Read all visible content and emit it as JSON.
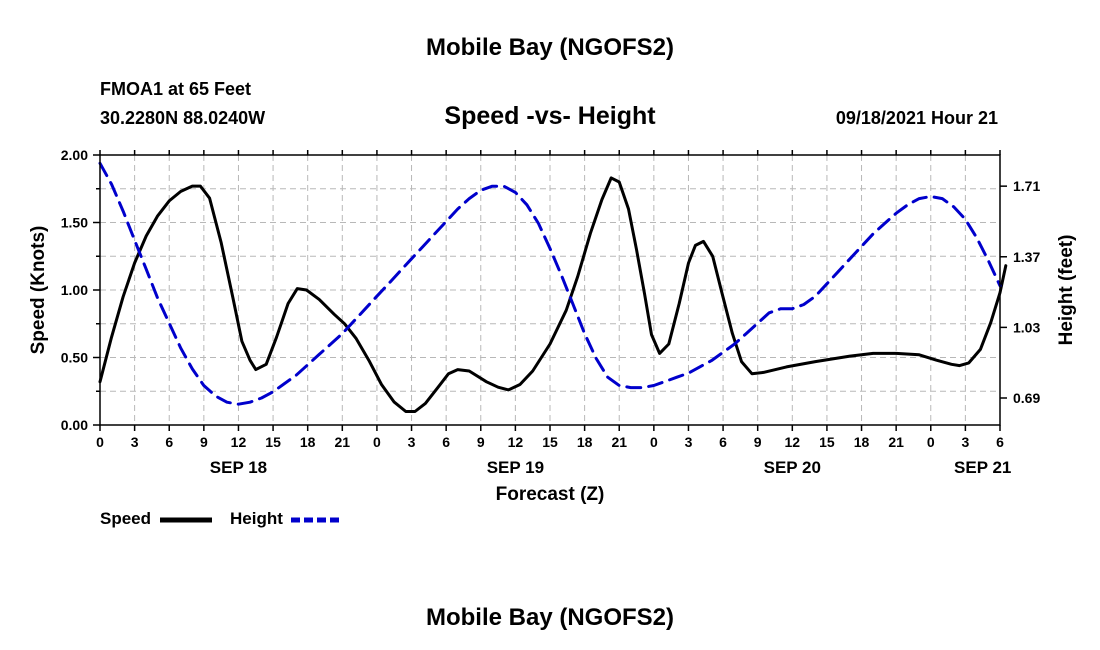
{
  "header": {
    "title": "Mobile Bay (NGOFS2)",
    "station": "FMOA1 at 65 Feet",
    "coords": "30.2280N  88.0240W",
    "subtitle": "Speed -vs- Height",
    "date": "09/18/2021 Hour 21"
  },
  "footer": {
    "title": "Mobile Bay (NGOFS2)"
  },
  "legend": {
    "speed_label": "Speed",
    "height_label": "Height"
  },
  "colors": {
    "speed": "#000000",
    "height": "#0000cc"
  },
  "chart_data": {
    "type": "line",
    "title": "Speed -vs- Height",
    "xlabel": "Forecast (Z)",
    "ylabel_left": "Speed (Knots)",
    "ylabel_right": "Height (feet)",
    "x_range_hours": [
      0,
      78
    ],
    "ylim_left": [
      0,
      2.0
    ],
    "ylim_right": [
      0.56,
      1.86
    ],
    "left_ticks": [
      {
        "value": 0.0,
        "label": "0.00"
      },
      {
        "value": 0.5,
        "label": "0.50"
      },
      {
        "value": 1.0,
        "label": "1.00"
      },
      {
        "value": 1.5,
        "label": "1.50"
      },
      {
        "value": 2.0,
        "label": "2.00"
      }
    ],
    "left_minor_ticks": [
      0.25,
      0.75,
      1.25,
      1.75
    ],
    "right_ticks": [
      {
        "value": 0.69,
        "label": "0.69"
      },
      {
        "value": 1.03,
        "label": "1.03"
      },
      {
        "value": 1.37,
        "label": "1.37"
      },
      {
        "value": 1.71,
        "label": "1.71"
      }
    ],
    "x_ticks": [
      {
        "hour": 0,
        "label": "0"
      },
      {
        "hour": 3,
        "label": "3"
      },
      {
        "hour": 6,
        "label": "6"
      },
      {
        "hour": 9,
        "label": "9"
      },
      {
        "hour": 12,
        "label": "12"
      },
      {
        "hour": 15,
        "label": "15"
      },
      {
        "hour": 18,
        "label": "18"
      },
      {
        "hour": 21,
        "label": "21"
      },
      {
        "hour": 24,
        "label": "0"
      },
      {
        "hour": 27,
        "label": "3"
      },
      {
        "hour": 30,
        "label": "6"
      },
      {
        "hour": 33,
        "label": "9"
      },
      {
        "hour": 36,
        "label": "12"
      },
      {
        "hour": 39,
        "label": "15"
      },
      {
        "hour": 42,
        "label": "18"
      },
      {
        "hour": 45,
        "label": "21"
      },
      {
        "hour": 48,
        "label": "0"
      },
      {
        "hour": 51,
        "label": "3"
      },
      {
        "hour": 54,
        "label": "6"
      },
      {
        "hour": 57,
        "label": "9"
      },
      {
        "hour": 60,
        "label": "12"
      },
      {
        "hour": 63,
        "label": "15"
      },
      {
        "hour": 66,
        "label": "18"
      },
      {
        "hour": 69,
        "label": "21"
      },
      {
        "hour": 72,
        "label": "0"
      },
      {
        "hour": 75,
        "label": "3"
      },
      {
        "hour": 78,
        "label": "6"
      }
    ],
    "date_labels": [
      {
        "hour": 12,
        "label": "SEP 18"
      },
      {
        "hour": 36,
        "label": "SEP 19"
      },
      {
        "hour": 60,
        "label": "SEP 20"
      },
      {
        "hour": 76.5,
        "label": "SEP 21"
      }
    ],
    "series": [
      {
        "name": "Speed",
        "axis": "left",
        "points": [
          [
            0,
            0.32
          ],
          [
            1,
            0.65
          ],
          [
            2,
            0.95
          ],
          [
            3,
            1.2
          ],
          [
            4,
            1.4
          ],
          [
            5,
            1.55
          ],
          [
            6,
            1.66
          ],
          [
            7,
            1.73
          ],
          [
            8,
            1.77
          ],
          [
            8.7,
            1.77
          ],
          [
            9.5,
            1.68
          ],
          [
            10.5,
            1.35
          ],
          [
            11.5,
            0.95
          ],
          [
            12.3,
            0.62
          ],
          [
            13,
            0.48
          ],
          [
            13.5,
            0.41
          ],
          [
            14.4,
            0.45
          ],
          [
            15.3,
            0.65
          ],
          [
            16.3,
            0.9
          ],
          [
            17.1,
            1.01
          ],
          [
            17.9,
            1.0
          ],
          [
            19,
            0.93
          ],
          [
            20.3,
            0.82
          ],
          [
            21.2,
            0.75
          ],
          [
            22.2,
            0.64
          ],
          [
            23.3,
            0.48
          ],
          [
            24.4,
            0.3
          ],
          [
            25.5,
            0.17
          ],
          [
            26.5,
            0.1
          ],
          [
            27.3,
            0.1
          ],
          [
            28.2,
            0.16
          ],
          [
            29.3,
            0.28
          ],
          [
            30.2,
            0.38
          ],
          [
            31.0,
            0.41
          ],
          [
            32.0,
            0.4
          ],
          [
            33.5,
            0.32
          ],
          [
            34.5,
            0.28
          ],
          [
            35.4,
            0.26
          ],
          [
            36.4,
            0.3
          ],
          [
            37.5,
            0.4
          ],
          [
            39,
            0.6
          ],
          [
            40.4,
            0.85
          ],
          [
            41.4,
            1.1
          ],
          [
            42.5,
            1.42
          ],
          [
            43.5,
            1.67
          ],
          [
            44.3,
            1.83
          ],
          [
            45.0,
            1.8
          ],
          [
            45.8,
            1.6
          ],
          [
            46.5,
            1.3
          ],
          [
            47.2,
            0.97
          ],
          [
            47.8,
            0.67
          ],
          [
            48.5,
            0.53
          ],
          [
            49.3,
            0.6
          ],
          [
            50.2,
            0.9
          ],
          [
            51.0,
            1.2
          ],
          [
            51.6,
            1.33
          ],
          [
            52.3,
            1.36
          ],
          [
            53.1,
            1.25
          ],
          [
            53.9,
            0.98
          ],
          [
            54.8,
            0.68
          ],
          [
            55.6,
            0.47
          ],
          [
            56.5,
            0.38
          ],
          [
            57.5,
            0.39
          ],
          [
            59.5,
            0.43
          ],
          [
            62,
            0.47
          ],
          [
            65,
            0.51
          ],
          [
            67,
            0.53
          ],
          [
            69,
            0.53
          ],
          [
            71,
            0.52
          ],
          [
            72.5,
            0.48
          ],
          [
            73.8,
            0.45
          ],
          [
            74.5,
            0.44
          ],
          [
            75.3,
            0.46
          ],
          [
            76.3,
            0.56
          ],
          [
            77.2,
            0.76
          ],
          [
            78,
            0.98
          ],
          [
            78.5,
            1.18
          ]
        ]
      },
      {
        "name": "Height",
        "axis": "right",
        "points": [
          [
            0,
            1.82
          ],
          [
            1,
            1.72
          ],
          [
            2,
            1.59
          ],
          [
            3,
            1.45
          ],
          [
            4,
            1.31
          ],
          [
            5,
            1.17
          ],
          [
            6,
            1.05
          ],
          [
            7,
            0.93
          ],
          [
            8,
            0.83
          ],
          [
            9,
            0.75
          ],
          [
            10,
            0.7
          ],
          [
            11,
            0.67
          ],
          [
            12,
            0.66
          ],
          [
            13,
            0.67
          ],
          [
            14,
            0.69
          ],
          [
            15,
            0.72
          ],
          [
            16,
            0.76
          ],
          [
            17,
            0.8
          ],
          [
            18,
            0.85
          ],
          [
            19,
            0.9
          ],
          [
            20,
            0.95
          ],
          [
            21,
            1.0
          ],
          [
            22,
            1.06
          ],
          [
            23,
            1.12
          ],
          [
            24,
            1.18
          ],
          [
            25,
            1.24
          ],
          [
            26,
            1.3
          ],
          [
            27,
            1.36
          ],
          [
            28,
            1.42
          ],
          [
            29,
            1.48
          ],
          [
            30,
            1.54
          ],
          [
            31,
            1.6
          ],
          [
            32,
            1.65
          ],
          [
            33,
            1.69
          ],
          [
            34,
            1.71
          ],
          [
            35,
            1.71
          ],
          [
            36,
            1.68
          ],
          [
            37,
            1.62
          ],
          [
            38,
            1.53
          ],
          [
            39,
            1.41
          ],
          [
            40,
            1.28
          ],
          [
            41,
            1.14
          ],
          [
            42,
            1.0
          ],
          [
            43,
            0.88
          ],
          [
            44,
            0.79
          ],
          [
            45,
            0.75
          ],
          [
            46,
            0.74
          ],
          [
            47,
            0.74
          ],
          [
            48,
            0.75
          ],
          [
            49,
            0.77
          ],
          [
            50,
            0.79
          ],
          [
            51,
            0.81
          ],
          [
            52,
            0.84
          ],
          [
            53,
            0.87
          ],
          [
            54,
            0.91
          ],
          [
            55,
            0.95
          ],
          [
            56,
            1.0
          ],
          [
            57,
            1.05
          ],
          [
            58,
            1.1
          ],
          [
            59,
            1.12
          ],
          [
            60,
            1.12
          ],
          [
            61,
            1.14
          ],
          [
            62,
            1.18
          ],
          [
            63,
            1.24
          ],
          [
            64,
            1.3
          ],
          [
            65,
            1.36
          ],
          [
            66,
            1.42
          ],
          [
            67,
            1.48
          ],
          [
            68,
            1.53
          ],
          [
            69,
            1.58
          ],
          [
            70,
            1.62
          ],
          [
            71,
            1.65
          ],
          [
            72,
            1.66
          ],
          [
            73,
            1.65
          ],
          [
            74,
            1.61
          ],
          [
            75,
            1.55
          ],
          [
            76,
            1.46
          ],
          [
            77,
            1.35
          ],
          [
            78,
            1.23
          ]
        ]
      }
    ]
  }
}
